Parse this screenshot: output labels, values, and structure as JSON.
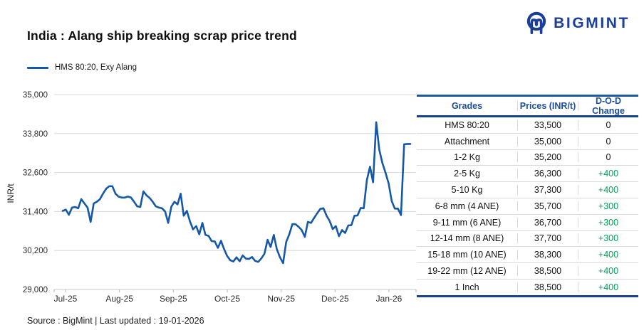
{
  "header": {
    "title": "India : Alang ship breaking scrap price trend",
    "brand": "BIGMINT"
  },
  "legend": {
    "label": "HMS 80:20, Exy Alang"
  },
  "footer": {
    "source": "Source : BigMint | Last updated : 19-01-2026"
  },
  "colors": {
    "line_blue": "#1658a8",
    "brand_blue": "#1b3f98",
    "table_header_blue": "#1c4f9f",
    "table_border_blue": "#16418f",
    "positive_green": "#00a45c",
    "gridline_gray": "#d9d9d9"
  },
  "chart_data": {
    "type": "line",
    "title": "India : Alang ship breaking scrap price trend",
    "xlabel": "",
    "ylabel": "INR/t",
    "series_name": "HMS 80:20, Exy Alang",
    "legend_position": "top-left",
    "grid": true,
    "ylim": [
      29000,
      35000
    ],
    "y_ticks": [
      {
        "value": 35000,
        "label": "35,000"
      },
      {
        "value": 33800,
        "label": "33,800"
      },
      {
        "value": 32600,
        "label": "32,600"
      },
      {
        "value": 31400,
        "label": "31,400"
      },
      {
        "value": 30200,
        "label": "30,200"
      },
      {
        "value": 29000,
        "label": "29,000"
      }
    ],
    "x_tick_labels": [
      "Jul-25",
      "Aug-25",
      "Sep-25",
      "Oct-25",
      "Nov-25",
      "Dec-25",
      "Jan-26"
    ],
    "values": [
      31420,
      31460,
      31300,
      31520,
      31540,
      31500,
      31780,
      31650,
      31520,
      31080,
      31650,
      31700,
      31780,
      31950,
      32100,
      32180,
      32180,
      31950,
      31860,
      31830,
      31830,
      31860,
      31830,
      31700,
      31560,
      31540,
      32020,
      31900,
      31820,
      31700,
      31560,
      31520,
      31500,
      31400,
      31050,
      31550,
      31700,
      31620,
      31950,
      31270,
      31420,
      31100,
      30850,
      30950,
      30700,
      31050,
      30680,
      30650,
      30490,
      30480,
      30280,
      30500,
      30240,
      30030,
      29900,
      29860,
      29990,
      29870,
      30050,
      29950,
      29940,
      30000,
      29880,
      29850,
      29960,
      30100,
      30530,
      30310,
      30680,
      30240,
      29990,
      29810,
      30460,
      30700,
      31010,
      31010,
      30930,
      30830,
      30620,
      31080,
      31050,
      31200,
      31350,
      31480,
      31500,
      31270,
      31110,
      30860,
      30950,
      30640,
      30830,
      30740,
      30970,
      30980,
      31270,
      31280,
      31510,
      31500,
      32370,
      32780,
      32300,
      34150,
      33300,
      32890,
      32600,
      32270,
      31720,
      31490,
      31490,
      31290,
      33470,
      33480,
      33480
    ],
    "last_value": 33500
  },
  "table": {
    "headers": [
      "Grades",
      "Prices (INR/t)",
      "D-O-D Change"
    ],
    "rows": [
      {
        "grade": "HMS 80:20",
        "price": "33,500",
        "change": "0"
      },
      {
        "grade": "Attachment",
        "price": "35,000",
        "change": "0"
      },
      {
        "grade": "1-2 Kg",
        "price": "35,200",
        "change": "0"
      },
      {
        "grade": "2-5 Kg",
        "price": "36,300",
        "change": "+400"
      },
      {
        "grade": "5-10 Kg",
        "price": "37,300",
        "change": "+400"
      },
      {
        "grade": "6-8 mm (4 ANE)",
        "price": "35,700",
        "change": "+300"
      },
      {
        "grade": "9-11 mm (6 ANE)",
        "price": "36,700",
        "change": "+300"
      },
      {
        "grade": "12-14 mm (8 ANE)",
        "price": "37,700",
        "change": "+300"
      },
      {
        "grade": "15-18 mm (10 ANE)",
        "price": "38,300",
        "change": "+400"
      },
      {
        "grade": "19-22 mm (12 ANE)",
        "price": "38,500",
        "change": "+400"
      },
      {
        "grade": "1 Inch",
        "price": "38,500",
        "change": "+400"
      }
    ]
  }
}
